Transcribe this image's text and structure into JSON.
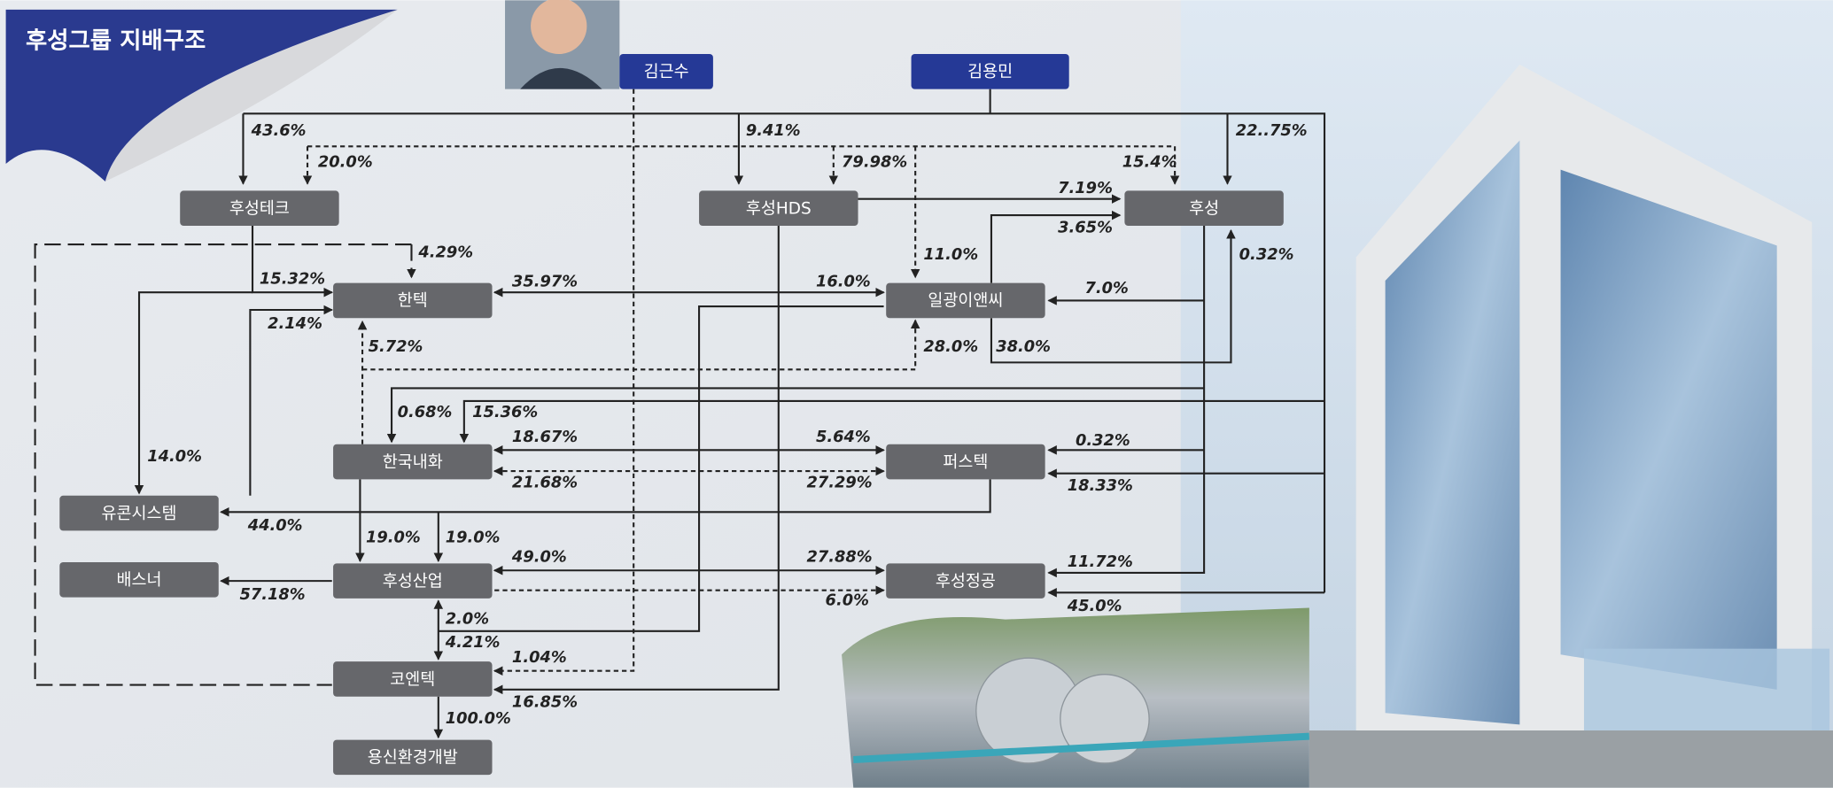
{
  "title": "후성그룹 지배구조",
  "persons": [
    "김근수",
    "김용민"
  ],
  "companies": [
    "후성테크",
    "후성HDS",
    "후성",
    "한텍",
    "일광이앤씨",
    "한국내화",
    "퍼스텍",
    "유콘시스템",
    "배스너",
    "후성산업",
    "후성정공",
    "코엔텍",
    "용신환경개발"
  ],
  "ownership_labels": [
    "43.6%",
    "20.0%",
    "9.41%",
    "79.98%",
    "15.4%",
    "22..75%",
    "7.19%",
    "3.65%",
    "4.29%",
    "11.0%",
    "0.32%",
    "15.32%",
    "35.97%",
    "16.0%",
    "7.0%",
    "2.14%",
    "5.72%",
    "28.0%",
    "38.0%",
    "0.68%",
    "15.36%",
    "14.0%",
    "18.67%",
    "5.64%",
    "0.32%",
    "21.68%",
    "27.29%",
    "18.33%",
    "44.0%",
    "19.0%",
    "19.0%",
    "49.0%",
    "27.88%",
    "11.72%",
    "57.18%",
    "6.0%",
    "45.0%",
    "2.0%",
    "4.21%",
    "1.04%",
    "16.85%",
    "100.0%"
  ]
}
